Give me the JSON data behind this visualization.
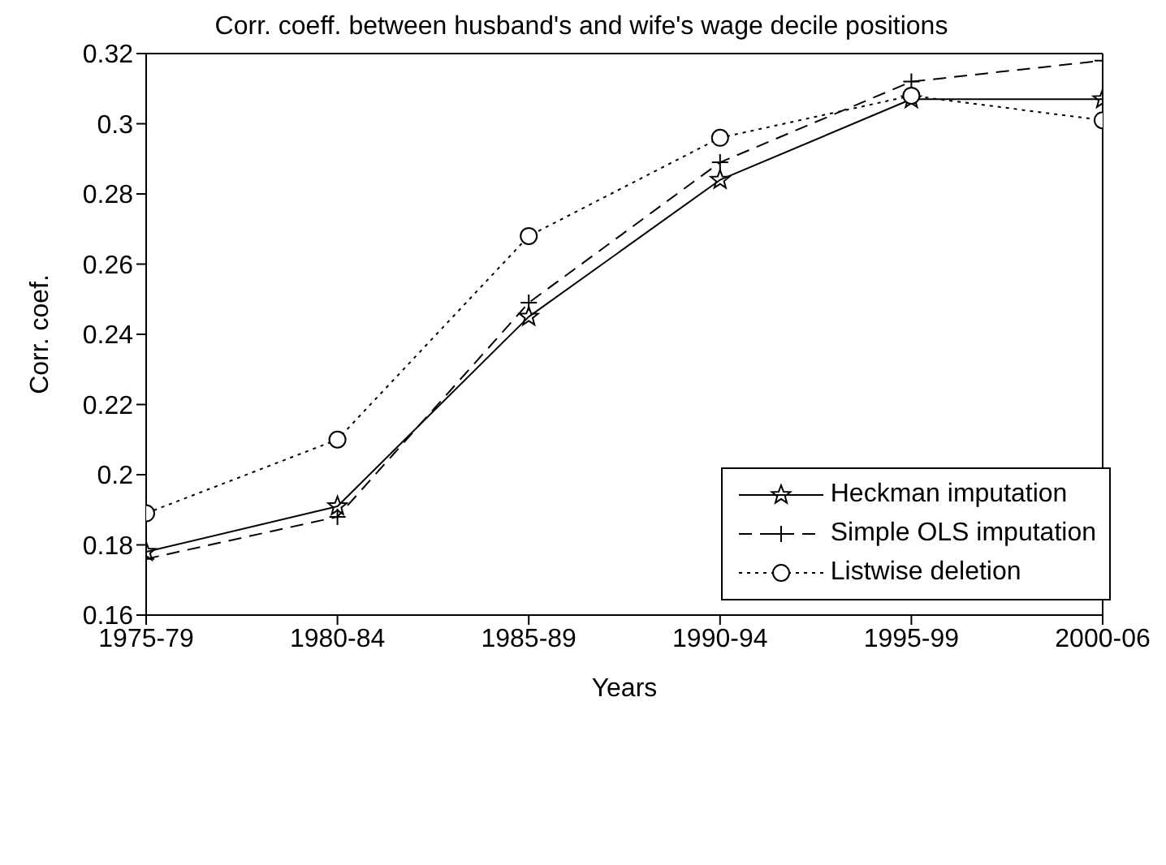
{
  "chart_data": {
    "type": "line",
    "title": "Corr. coeff. between husband's and wife's wage decile positions",
    "xlabel": "Years",
    "ylabel": "Corr. coef.",
    "categories": [
      "1975-79",
      "1980-84",
      "1985-89",
      "1990-94",
      "1995-99",
      "2000-06"
    ],
    "series": [
      {
        "name": "Heckman imputation",
        "color": "#000000",
        "marker": "star",
        "line_style": "solid",
        "values": [
          0.178,
          0.191,
          0.245,
          0.284,
          0.307,
          0.307
        ]
      },
      {
        "name": "Simple OLS imputation",
        "color": "#000000",
        "marker": "cross",
        "line_style": "dashed",
        "values": [
          0.176,
          0.188,
          0.249,
          0.289,
          0.312,
          0.318
        ]
      },
      {
        "name": "Listwise deletion",
        "color": "#000000",
        "marker": "circle",
        "line_style": "dotted",
        "values": [
          0.189,
          0.21,
          0.268,
          0.296,
          0.308,
          0.301
        ]
      }
    ],
    "ylim": [
      0.16,
      0.32
    ],
    "yticks": [
      0.16,
      0.18,
      0.2,
      0.22,
      0.24,
      0.26,
      0.28,
      0.3,
      0.32
    ],
    "grid": false,
    "legend": "bottom right"
  }
}
